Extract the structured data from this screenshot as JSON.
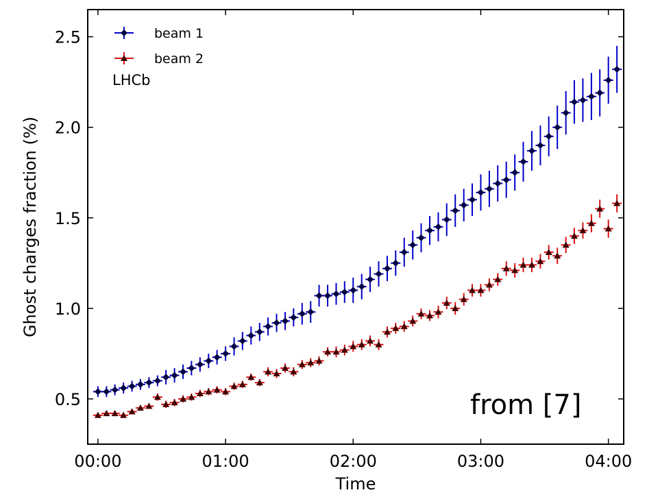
{
  "chart_data": {
    "type": "scatter",
    "title": "",
    "xlabel": "Time",
    "ylabel": "Ghost charges fraction (%)",
    "x_tick_labels": [
      "00:00",
      "01:00",
      "02:00",
      "03:00",
      "04:00"
    ],
    "x_tick_values": [
      0,
      1,
      2,
      3,
      4
    ],
    "y_tick_labels": [
      "0.5",
      "1.0",
      "1.5",
      "2.0",
      "2.5"
    ],
    "y_tick_values": [
      0.5,
      1.0,
      1.5,
      2.0,
      2.5
    ],
    "xlim": [
      -0.08,
      4.12
    ],
    "ylim": [
      0.25,
      2.65
    ],
    "grid": false,
    "legend_position": "top-left",
    "annotations": [
      "LHCb",
      "from [7]"
    ],
    "series": [
      {
        "name": "beam 1",
        "color": "#0000cc",
        "marker_color": "#000044",
        "marker": "diamond",
        "x": [
          0.0,
          0.067,
          0.133,
          0.2,
          0.267,
          0.333,
          0.4,
          0.467,
          0.533,
          0.6,
          0.667,
          0.733,
          0.8,
          0.867,
          0.933,
          1.0,
          1.067,
          1.133,
          1.2,
          1.267,
          1.333,
          1.4,
          1.467,
          1.533,
          1.6,
          1.667,
          1.733,
          1.8,
          1.867,
          1.933,
          2.0,
          2.067,
          2.133,
          2.2,
          2.267,
          2.333,
          2.4,
          2.467,
          2.533,
          2.6,
          2.667,
          2.733,
          2.8,
          2.867,
          2.933,
          3.0,
          3.067,
          3.133,
          3.2,
          3.267,
          3.333,
          3.4,
          3.467,
          3.533,
          3.6,
          3.667,
          3.733,
          3.8,
          3.867,
          3.933,
          4.0,
          4.067
        ],
        "y": [
          0.54,
          0.54,
          0.55,
          0.56,
          0.57,
          0.58,
          0.59,
          0.6,
          0.62,
          0.63,
          0.65,
          0.67,
          0.69,
          0.71,
          0.73,
          0.75,
          0.79,
          0.82,
          0.85,
          0.87,
          0.9,
          0.92,
          0.93,
          0.95,
          0.97,
          0.98,
          1.07,
          1.07,
          1.08,
          1.09,
          1.1,
          1.12,
          1.16,
          1.19,
          1.22,
          1.25,
          1.31,
          1.35,
          1.39,
          1.43,
          1.45,
          1.49,
          1.54,
          1.57,
          1.6,
          1.64,
          1.66,
          1.69,
          1.71,
          1.75,
          1.81,
          1.87,
          1.9,
          1.95,
          2.0,
          2.08,
          2.14,
          2.15,
          2.17,
          2.19,
          2.26,
          2.32
        ],
        "error": [
          0.03,
          0.03,
          0.03,
          0.03,
          0.03,
          0.03,
          0.03,
          0.03,
          0.04,
          0.04,
          0.04,
          0.04,
          0.04,
          0.04,
          0.04,
          0.04,
          0.05,
          0.05,
          0.05,
          0.05,
          0.05,
          0.05,
          0.05,
          0.05,
          0.06,
          0.06,
          0.06,
          0.06,
          0.06,
          0.06,
          0.07,
          0.07,
          0.07,
          0.07,
          0.07,
          0.07,
          0.08,
          0.08,
          0.08,
          0.08,
          0.08,
          0.09,
          0.09,
          0.09,
          0.09,
          0.1,
          0.1,
          0.1,
          0.1,
          0.1,
          0.11,
          0.11,
          0.11,
          0.11,
          0.12,
          0.12,
          0.12,
          0.12,
          0.13,
          0.13,
          0.13,
          0.13
        ]
      },
      {
        "name": "beam 2",
        "color": "#dd1111",
        "marker_color": "#440000",
        "marker": "triangle",
        "x": [
          0.0,
          0.067,
          0.133,
          0.2,
          0.267,
          0.333,
          0.4,
          0.467,
          0.533,
          0.6,
          0.667,
          0.733,
          0.8,
          0.867,
          0.933,
          1.0,
          1.067,
          1.133,
          1.2,
          1.267,
          1.333,
          1.4,
          1.467,
          1.533,
          1.6,
          1.667,
          1.733,
          1.8,
          1.867,
          1.933,
          2.0,
          2.067,
          2.133,
          2.2,
          2.267,
          2.333,
          2.4,
          2.467,
          2.533,
          2.6,
          2.667,
          2.733,
          2.8,
          2.867,
          2.933,
          3.0,
          3.067,
          3.133,
          3.2,
          3.267,
          3.333,
          3.4,
          3.467,
          3.533,
          3.6,
          3.667,
          3.733,
          3.8,
          3.867,
          3.933,
          4.0,
          4.067
        ],
        "y": [
          0.41,
          0.42,
          0.42,
          0.41,
          0.43,
          0.45,
          0.46,
          0.51,
          0.47,
          0.48,
          0.5,
          0.51,
          0.53,
          0.54,
          0.55,
          0.54,
          0.57,
          0.58,
          0.62,
          0.59,
          0.65,
          0.64,
          0.67,
          0.65,
          0.69,
          0.7,
          0.71,
          0.76,
          0.76,
          0.77,
          0.79,
          0.8,
          0.82,
          0.8,
          0.87,
          0.89,
          0.9,
          0.93,
          0.97,
          0.96,
          0.98,
          1.03,
          1.0,
          1.05,
          1.1,
          1.1,
          1.13,
          1.16,
          1.22,
          1.21,
          1.24,
          1.24,
          1.26,
          1.31,
          1.29,
          1.35,
          1.4,
          1.43,
          1.47,
          1.55,
          1.44,
          1.58
        ],
        "error": [
          0.015,
          0.015,
          0.015,
          0.015,
          0.015,
          0.015,
          0.015,
          0.02,
          0.02,
          0.02,
          0.02,
          0.02,
          0.02,
          0.02,
          0.02,
          0.02,
          0.02,
          0.02,
          0.02,
          0.02,
          0.025,
          0.025,
          0.025,
          0.025,
          0.025,
          0.025,
          0.025,
          0.025,
          0.03,
          0.03,
          0.03,
          0.03,
          0.03,
          0.03,
          0.03,
          0.03,
          0.03,
          0.03,
          0.03,
          0.03,
          0.035,
          0.035,
          0.035,
          0.035,
          0.035,
          0.035,
          0.035,
          0.035,
          0.04,
          0.04,
          0.04,
          0.04,
          0.04,
          0.04,
          0.045,
          0.045,
          0.045,
          0.045,
          0.05,
          0.05,
          0.05,
          0.05
        ]
      }
    ]
  }
}
